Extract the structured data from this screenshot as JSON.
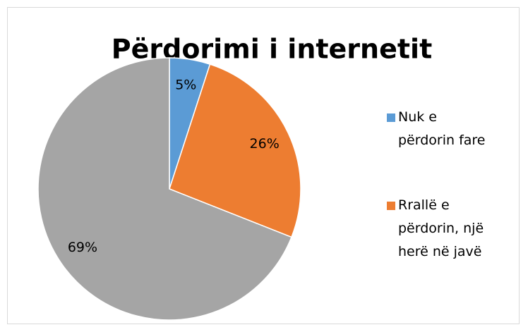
{
  "chart_data": {
    "type": "pie",
    "title": "Përdorimi i internetit",
    "categories": [
      "Nuk e përdorin fare",
      "Rrallë e përdorin, një herë në javë",
      null
    ],
    "values": [
      5,
      26,
      69
    ],
    "value_labels": [
      "5%",
      "26%",
      "69%"
    ],
    "colors": [
      "#5b9bd5",
      "#ed7d31",
      "#a5a5a5"
    ],
    "legend": "right"
  }
}
